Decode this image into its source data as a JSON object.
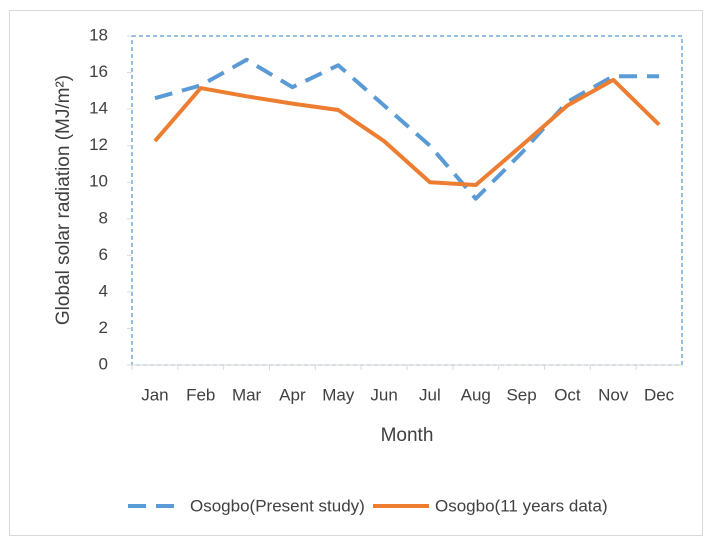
{
  "chart_data": {
    "type": "line",
    "x_label": "Month",
    "y_label": "Global solar radiation (MJ/m²)",
    "categories": [
      "Jan",
      "Feb",
      "Mar",
      "Apr",
      "May",
      "Jun",
      "Jul",
      "Aug",
      "Sep",
      "Oct",
      "Nov",
      "Dec"
    ],
    "series": [
      {
        "name": "Osogbo(Present study)",
        "color": "#5b9bd5",
        "dashed": true,
        "values": [
          14.6,
          15.3,
          16.7,
          15.2,
          16.4,
          14.2,
          12.0,
          9.1,
          11.6,
          14.4,
          15.8,
          15.8
        ]
      },
      {
        "name": "Osogbo(11 years data)",
        "color": "#ed7d31",
        "dashed": false,
        "values": [
          12.25,
          15.15,
          14.7,
          14.3,
          13.95,
          12.25,
          10.0,
          9.85,
          12.0,
          14.2,
          15.6,
          13.15
        ]
      }
    ],
    "ylim": [
      0,
      18
    ],
    "yticks": [
      0,
      2,
      4,
      6,
      8,
      10,
      12,
      14,
      16,
      18
    ],
    "legend": "bottom"
  }
}
